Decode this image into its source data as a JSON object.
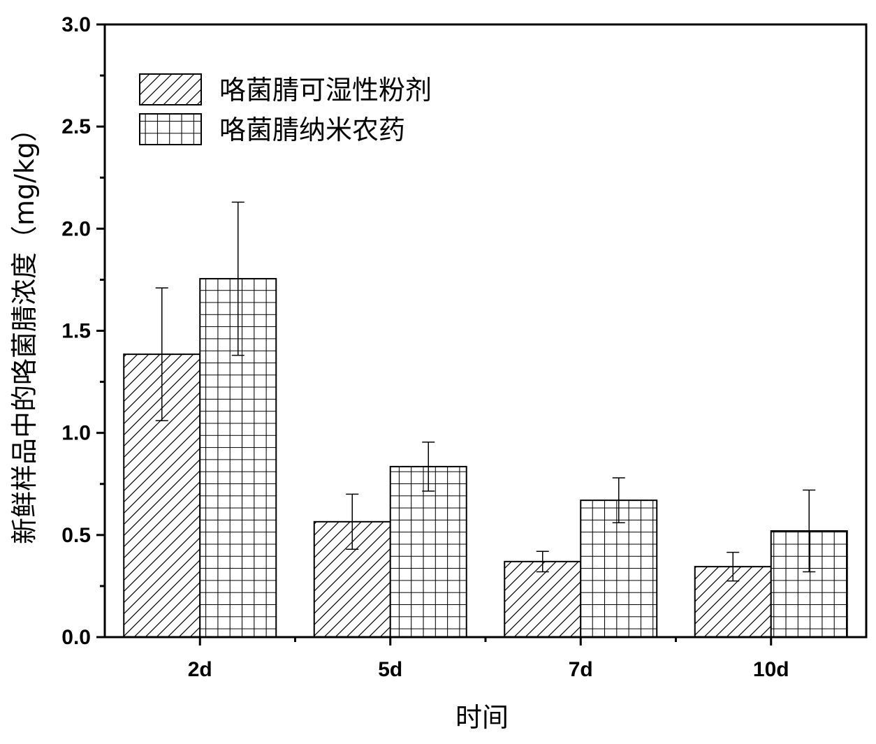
{
  "chart_data": {
    "type": "bar",
    "title": "",
    "xlabel": "时间",
    "ylabel": "新鲜样品中的咯菌腈浓度（mg/kg）",
    "categories": [
      "2d",
      "5d",
      "7d",
      "10d"
    ],
    "ylim": [
      0,
      3.0
    ],
    "yticks": [
      "0.0",
      "0.5",
      "1.0",
      "1.5",
      "2.0",
      "2.5",
      "3.0"
    ],
    "grid": false,
    "legend_position": "top-left",
    "series": [
      {
        "name": "咯菌腈可湿性粉剂",
        "pattern": "diagonal-hatch",
        "values": [
          1.385,
          0.565,
          0.37,
          0.345
        ],
        "errors": [
          0.325,
          0.135,
          0.05,
          0.07
        ]
      },
      {
        "name": "咯菌腈纳米农药",
        "pattern": "grid",
        "values": [
          1.755,
          0.835,
          0.67,
          0.52
        ],
        "errors": [
          0.375,
          0.12,
          0.11,
          0.2
        ]
      }
    ]
  }
}
